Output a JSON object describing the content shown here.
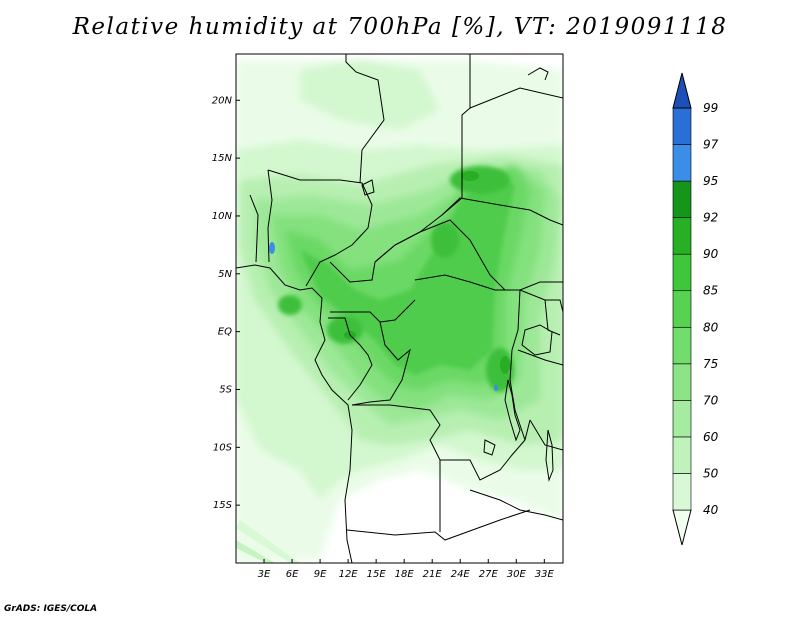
{
  "title": "Relative humidity at 700hPa [%], VT: 2019091118",
  "footer": "GrADS: IGES/COLA",
  "map": {
    "lon_range": [
      0,
      35
    ],
    "lat_range": [
      -20,
      24
    ],
    "lat_ticks": [
      {
        "value": 20,
        "label": "20N"
      },
      {
        "value": 15,
        "label": "15N"
      },
      {
        "value": 10,
        "label": "10N"
      },
      {
        "value": 5,
        "label": "5N"
      },
      {
        "value": 0,
        "label": "EQ"
      },
      {
        "value": -5,
        "label": "5S"
      },
      {
        "value": -10,
        "label": "10S"
      },
      {
        "value": -15,
        "label": "15S"
      }
    ],
    "lon_ticks": [
      {
        "value": 3,
        "label": "3E"
      },
      {
        "value": 6,
        "label": "6E"
      },
      {
        "value": 9,
        "label": "9E"
      },
      {
        "value": 12,
        "label": "12E"
      },
      {
        "value": 15,
        "label": "15E"
      },
      {
        "value": 18,
        "label": "18E"
      },
      {
        "value": 21,
        "label": "21E"
      },
      {
        "value": 24,
        "label": "24E"
      },
      {
        "value": 27,
        "label": "27E"
      },
      {
        "value": 30,
        "label": "30E"
      },
      {
        "value": 33,
        "label": "33E"
      }
    ]
  },
  "colorbar": {
    "levels": [
      "40",
      "50",
      "60",
      "70",
      "75",
      "80",
      "85",
      "90",
      "92",
      "95",
      "97",
      "99"
    ],
    "colors": [
      "#f0fff0",
      "#d9f9d6",
      "#c0f2bb",
      "#a6eca0",
      "#8de486",
      "#72dc6c",
      "#58d252",
      "#3fc63a",
      "#28b025",
      "#15961a",
      "#3a8ee8",
      "#2a6fd6",
      "#1e4fb8"
    ]
  }
}
